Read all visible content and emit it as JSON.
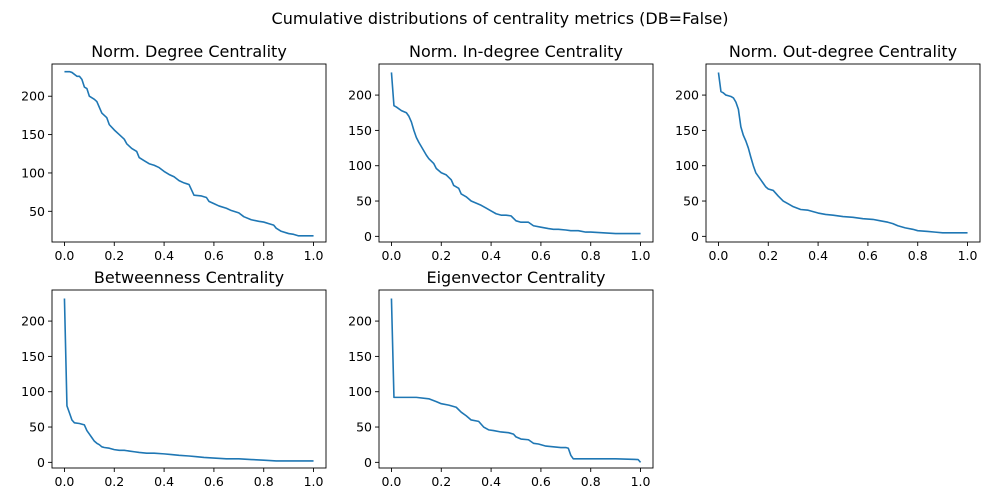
{
  "figure": {
    "title": "Cumulative distributions of centrality metrics (DB=False)",
    "line_color": "#1f77b4"
  },
  "chart_data": [
    {
      "type": "line",
      "title": "Norm. Degree Centrality",
      "xlim": [
        -0.05,
        1.05
      ],
      "ylim": [
        10,
        242
      ],
      "xticks": [
        0.0,
        0.2,
        0.4,
        0.6,
        0.8,
        1.0
      ],
      "xtick_labels": [
        "0.0",
        "0.2",
        "0.4",
        "0.6",
        "0.8",
        "1.0"
      ],
      "yticks": [
        50,
        100,
        150,
        200
      ],
      "ytick_labels": [
        "50",
        "100",
        "150",
        "200"
      ],
      "x": [
        0.0,
        0.02,
        0.03,
        0.05,
        0.06,
        0.07,
        0.08,
        0.09,
        0.1,
        0.12,
        0.13,
        0.15,
        0.17,
        0.18,
        0.2,
        0.22,
        0.24,
        0.25,
        0.27,
        0.29,
        0.3,
        0.32,
        0.34,
        0.36,
        0.38,
        0.4,
        0.42,
        0.44,
        0.46,
        0.48,
        0.49,
        0.5,
        0.52,
        0.55,
        0.57,
        0.58,
        0.6,
        0.62,
        0.65,
        0.67,
        0.7,
        0.72,
        0.75,
        0.78,
        0.8,
        0.82,
        0.84,
        0.85,
        0.87,
        0.9,
        0.92,
        0.94,
        0.96,
        1.0
      ],
      "y": [
        232,
        232,
        231,
        226,
        226,
        222,
        212,
        210,
        200,
        196,
        193,
        178,
        172,
        163,
        156,
        150,
        144,
        138,
        132,
        128,
        120,
        116,
        112,
        110,
        107,
        102,
        98,
        95,
        90,
        87,
        86,
        85,
        71,
        70,
        68,
        63,
        60,
        57,
        54,
        51,
        48,
        43,
        39,
        37,
        36,
        34,
        32,
        28,
        24,
        21,
        20,
        18,
        18,
        18
      ]
    },
    {
      "type": "line",
      "title": "Norm. In-degree Centrality",
      "xlim": [
        -0.05,
        1.05
      ],
      "ylim": [
        -8,
        244
      ],
      "xticks": [
        0.0,
        0.2,
        0.4,
        0.6,
        0.8,
        1.0
      ],
      "xtick_labels": [
        "0.0",
        "0.2",
        "0.4",
        "0.6",
        "0.8",
        "1.0"
      ],
      "yticks": [
        0,
        50,
        100,
        150,
        200
      ],
      "ytick_labels": [
        "0",
        "50",
        "100",
        "150",
        "200"
      ],
      "x": [
        0.0,
        0.01,
        0.02,
        0.04,
        0.06,
        0.07,
        0.08,
        0.09,
        0.1,
        0.11,
        0.12,
        0.14,
        0.15,
        0.17,
        0.18,
        0.2,
        0.22,
        0.24,
        0.25,
        0.27,
        0.28,
        0.3,
        0.32,
        0.34,
        0.36,
        0.38,
        0.4,
        0.42,
        0.44,
        0.46,
        0.48,
        0.5,
        0.52,
        0.55,
        0.57,
        0.6,
        0.63,
        0.65,
        0.67,
        0.7,
        0.72,
        0.75,
        0.78,
        0.8,
        0.85,
        0.9,
        0.95,
        1.0
      ],
      "y": [
        232,
        185,
        183,
        178,
        175,
        170,
        162,
        150,
        140,
        133,
        127,
        115,
        110,
        103,
        96,
        90,
        87,
        80,
        72,
        68,
        60,
        56,
        50,
        47,
        44,
        40,
        36,
        32,
        30,
        30,
        29,
        22,
        20,
        20,
        15,
        13,
        11,
        10,
        10,
        9,
        8,
        8,
        6,
        6,
        5,
        4,
        4,
        4
      ]
    },
    {
      "type": "line",
      "title": "Norm. Out-degree Centrality",
      "xlim": [
        -0.05,
        1.05
      ],
      "ylim": [
        -8,
        244
      ],
      "xticks": [
        0.0,
        0.2,
        0.4,
        0.6,
        0.8,
        1.0
      ],
      "xtick_labels": [
        "0.0",
        "0.2",
        "0.4",
        "0.6",
        "0.8",
        "1.0"
      ],
      "yticks": [
        0,
        50,
        100,
        150,
        200
      ],
      "ytick_labels": [
        "0",
        "50",
        "100",
        "150",
        "200"
      ],
      "x": [
        0.0,
        0.01,
        0.02,
        0.03,
        0.04,
        0.05,
        0.06,
        0.07,
        0.08,
        0.09,
        0.1,
        0.11,
        0.12,
        0.13,
        0.14,
        0.15,
        0.16,
        0.17,
        0.18,
        0.19,
        0.2,
        0.22,
        0.24,
        0.26,
        0.28,
        0.3,
        0.33,
        0.36,
        0.38,
        0.4,
        0.43,
        0.46,
        0.5,
        0.54,
        0.58,
        0.62,
        0.65,
        0.68,
        0.7,
        0.72,
        0.75,
        0.78,
        0.8,
        0.84,
        0.87,
        0.9,
        0.93,
        0.96,
        1.0
      ],
      "y": [
        232,
        205,
        203,
        200,
        199,
        198,
        196,
        190,
        180,
        155,
        143,
        135,
        125,
        112,
        100,
        90,
        85,
        80,
        75,
        70,
        67,
        65,
        57,
        50,
        46,
        42,
        38,
        37,
        35,
        33,
        31,
        30,
        28,
        27,
        25,
        24,
        22,
        20,
        18,
        15,
        12,
        10,
        8,
        7,
        6,
        5,
        5,
        5,
        5
      ]
    },
    {
      "type": "line",
      "title": "Betweenness Centrality",
      "xlim": [
        -0.05,
        1.05
      ],
      "ylim": [
        -8,
        244
      ],
      "xticks": [
        0.0,
        0.2,
        0.4,
        0.6,
        0.8,
        1.0
      ],
      "xtick_labels": [
        "0.0",
        "0.2",
        "0.4",
        "0.6",
        "0.8",
        "1.0"
      ],
      "yticks": [
        0,
        50,
        100,
        150,
        200
      ],
      "ytick_labels": [
        "0",
        "50",
        "100",
        "150",
        "200"
      ],
      "x": [
        0.0,
        0.01,
        0.02,
        0.03,
        0.04,
        0.06,
        0.08,
        0.09,
        0.1,
        0.11,
        0.12,
        0.13,
        0.14,
        0.15,
        0.16,
        0.18,
        0.2,
        0.22,
        0.24,
        0.26,
        0.28,
        0.3,
        0.33,
        0.36,
        0.4,
        0.43,
        0.46,
        0.5,
        0.53,
        0.56,
        0.6,
        0.65,
        0.7,
        0.75,
        0.8,
        0.85,
        0.9,
        0.95,
        1.0
      ],
      "y": [
        232,
        80,
        70,
        60,
        56,
        55,
        53,
        45,
        40,
        35,
        30,
        27,
        25,
        22,
        21,
        20,
        18,
        17,
        17,
        16,
        15,
        14,
        13,
        13,
        12,
        11,
        10,
        9,
        8,
        7,
        6,
        5,
        5,
        4,
        3,
        2,
        2,
        2,
        2
      ]
    },
    {
      "type": "line",
      "title": "Eigenvector Centrality",
      "xlim": [
        -0.05,
        1.05
      ],
      "ylim": [
        -8,
        244
      ],
      "xticks": [
        0.0,
        0.2,
        0.4,
        0.6,
        0.8,
        1.0
      ],
      "xtick_labels": [
        "0.0",
        "0.2",
        "0.4",
        "0.6",
        "0.8",
        "1.0"
      ],
      "yticks": [
        0,
        50,
        100,
        150,
        200
      ],
      "ytick_labels": [
        "0",
        "50",
        "100",
        "150",
        "200"
      ],
      "x": [
        0.0,
        0.01,
        0.05,
        0.1,
        0.15,
        0.18,
        0.2,
        0.23,
        0.26,
        0.28,
        0.3,
        0.32,
        0.35,
        0.37,
        0.39,
        0.41,
        0.44,
        0.47,
        0.49,
        0.5,
        0.52,
        0.55,
        0.57,
        0.59,
        0.62,
        0.65,
        0.68,
        0.7,
        0.71,
        0.72,
        0.73,
        0.8,
        0.9,
        0.99,
        1.0
      ],
      "y": [
        232,
        92,
        92,
        92,
        90,
        86,
        83,
        81,
        78,
        71,
        66,
        60,
        58,
        50,
        46,
        45,
        43,
        42,
        40,
        36,
        33,
        32,
        27,
        26,
        23,
        22,
        21,
        21,
        20,
        10,
        5,
        5,
        5,
        4,
        0
      ]
    }
  ]
}
